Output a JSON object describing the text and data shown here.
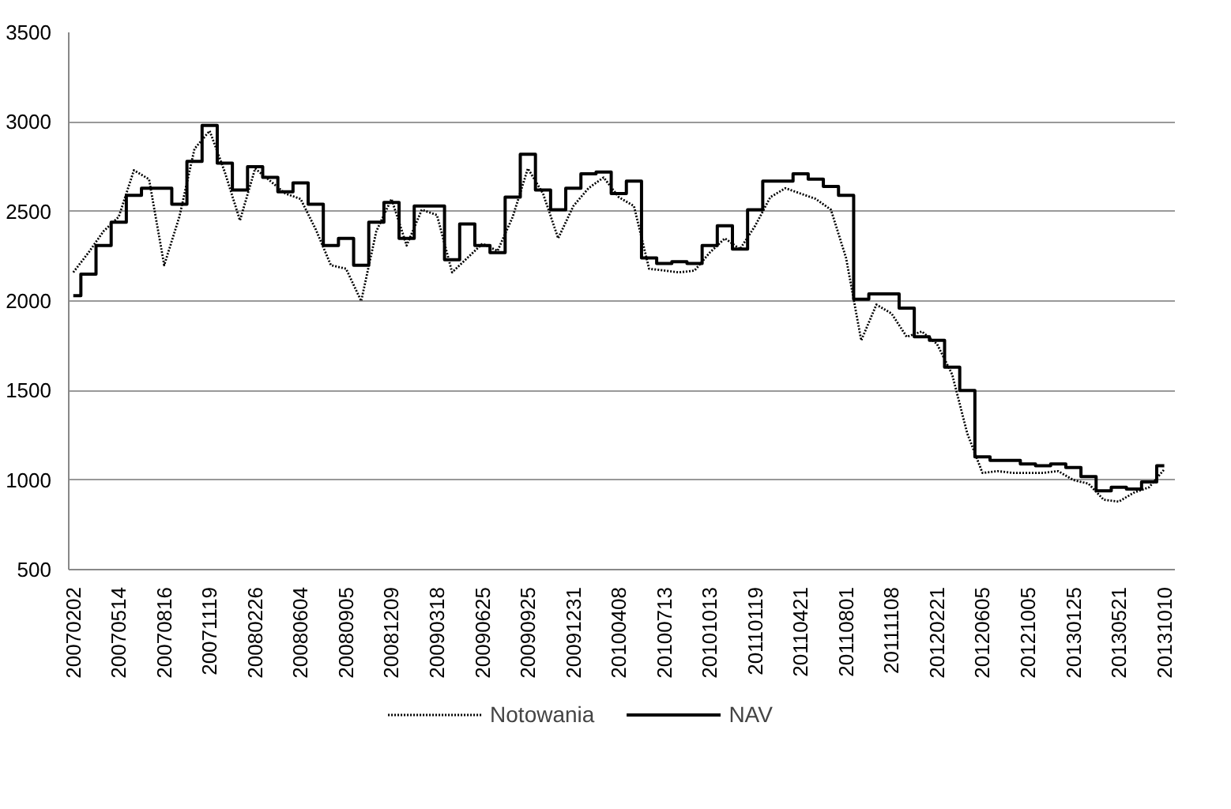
{
  "chart_data": {
    "type": "line",
    "categories": [
      "20070202",
      null,
      null,
      "20070514",
      null,
      null,
      "20070816",
      null,
      null,
      "20071119",
      null,
      null,
      "20080226",
      null,
      null,
      "20080604",
      null,
      null,
      "20080905",
      null,
      null,
      "20081209",
      null,
      null,
      "20090318",
      null,
      null,
      "20090625",
      null,
      null,
      "20090925",
      null,
      null,
      "20091231",
      null,
      null,
      "20100408",
      null,
      null,
      "20100713",
      null,
      null,
      "20101013",
      null,
      null,
      "20110119",
      null,
      null,
      "20110421",
      null,
      null,
      "20110801",
      null,
      null,
      "20111108",
      null,
      null,
      "20120221",
      null,
      null,
      "20120605",
      null,
      null,
      "20121005",
      null,
      null,
      "20130125",
      null,
      null,
      "20130521",
      null,
      null,
      "20131010"
    ],
    "series": [
      {
        "name": "Notowania",
        "line_style": "dotted",
        "color": "#000000",
        "values": [
          2160,
          2270,
          2390,
          2470,
          2730,
          2680,
          2200,
          2470,
          2850,
          2950,
          2720,
          2450,
          2740,
          2670,
          2600,
          2570,
          2400,
          2200,
          2180,
          2000,
          2390,
          2570,
          2310,
          2510,
          2480,
          2160,
          2240,
          2320,
          2280,
          2470,
          2740,
          2600,
          2350,
          2530,
          2630,
          2690,
          2580,
          2530,
          2180,
          2170,
          2160,
          2170,
          2270,
          2350,
          2290,
          2420,
          2580,
          2630,
          2600,
          2570,
          2510,
          2240,
          1780,
          1980,
          1930,
          1800,
          1830,
          1760,
          1590,
          1260,
          1040,
          1050,
          1040,
          1040,
          1040,
          1050,
          1000,
          980,
          890,
          880,
          930,
          960,
          1060
        ]
      },
      {
        "name": "NAV",
        "type": "step",
        "line_style": "solid",
        "color": "#000000",
        "values": [
          2030,
          2150,
          2310,
          2440,
          2590,
          2630,
          2630,
          2540,
          2780,
          2980,
          2770,
          2620,
          2750,
          2690,
          2610,
          2660,
          2540,
          2310,
          2350,
          2200,
          2440,
          2550,
          2350,
          2530,
          2530,
          2230,
          2430,
          2310,
          2270,
          2580,
          2820,
          2620,
          2510,
          2630,
          2710,
          2720,
          2600,
          2670,
          2240,
          2210,
          2220,
          2210,
          2310,
          2420,
          2290,
          2510,
          2670,
          2670,
          2710,
          2680,
          2640,
          2590,
          2010,
          2040,
          2040,
          1960,
          1800,
          1780,
          1630,
          1500,
          1130,
          1110,
          1110,
          1090,
          1080,
          1090,
          1070,
          1020,
          940,
          960,
          950,
          990,
          1080
        ]
      }
    ],
    "ylim": [
      500,
      3500
    ],
    "yticks": [
      500,
      1000,
      1500,
      2000,
      2500,
      3000,
      3500
    ],
    "grid": "y",
    "legend": "bottom"
  }
}
